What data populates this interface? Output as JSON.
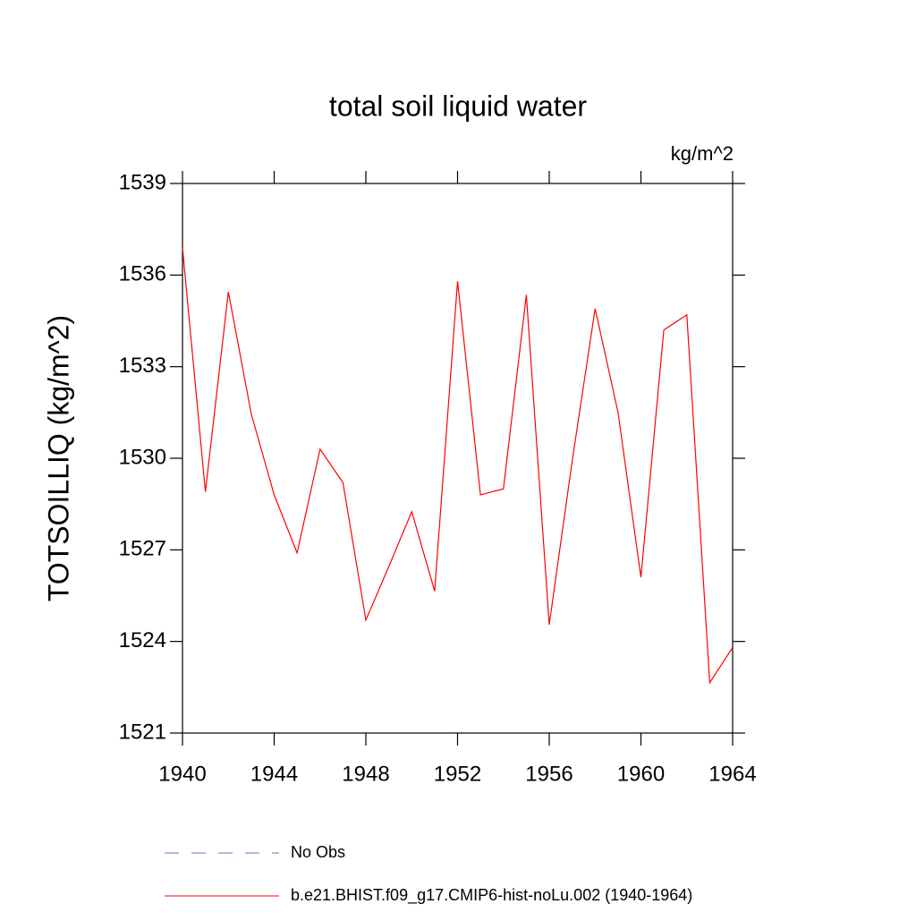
{
  "chart_data": {
    "type": "line",
    "title": "total soil liquid water",
    "units": "kg/m^2",
    "y_label": "TOTSOILLIQ  (kg/m^2)",
    "x": [
      1940,
      1941,
      1942,
      1943,
      1944,
      1945,
      1946,
      1947,
      1948,
      1949,
      1950,
      1951,
      1952,
      1953,
      1954,
      1955,
      1956,
      1957,
      1958,
      1959,
      1960,
      1961,
      1962,
      1963,
      1964
    ],
    "series": [
      {
        "name": "b.e21.BHIST.f09_g17.CMIP6-hist-noLu.002 (1940-1964)",
        "color": "#ff0000",
        "values": [
          1536.9,
          1528.9,
          1535.45,
          1531.45,
          1528.8,
          1526.9,
          1530.3,
          1529.2,
          1524.7,
          1526.45,
          1528.25,
          1525.65,
          1535.8,
          1528.8,
          1529.0,
          1535.35,
          1524.55,
          1529.9,
          1534.9,
          1531.5,
          1526.1,
          1534.2,
          1534.7,
          1522.65,
          1523.8
        ]
      }
    ],
    "obs": {
      "name": "No Obs",
      "color": "#7b68c8"
    },
    "xlim": [
      1940,
      1964
    ],
    "xticks": [
      1940,
      1944,
      1948,
      1952,
      1956,
      1960,
      1964
    ],
    "ylim": [
      1521,
      1539
    ],
    "yticks": [
      1521,
      1524,
      1527,
      1530,
      1533,
      1536,
      1539
    ]
  }
}
